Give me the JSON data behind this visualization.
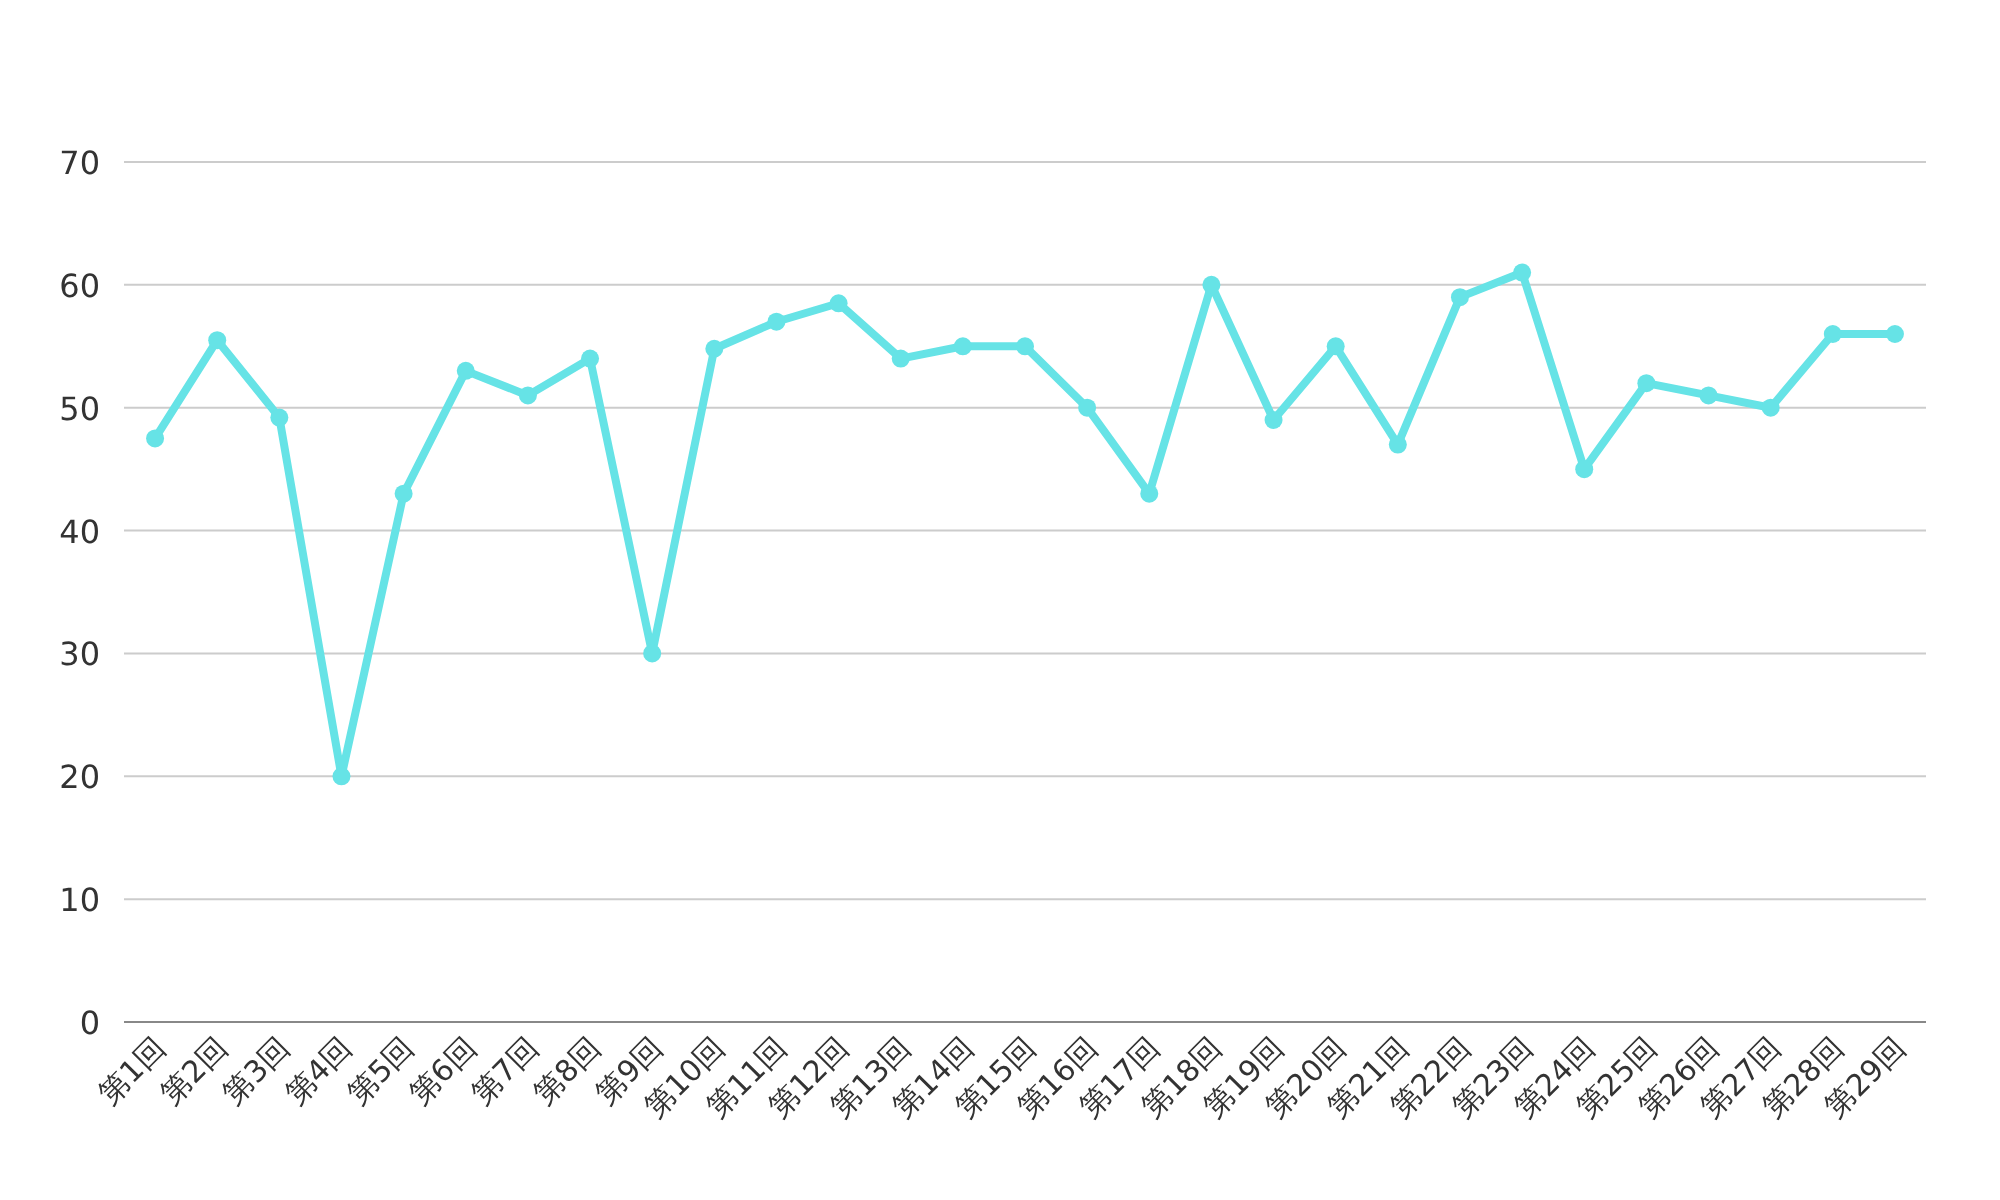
{
  "chart_data": {
    "type": "line",
    "categories": [
      "第1回",
      "第2回",
      "第3回",
      "第4回",
      "第5回",
      "第6回",
      "第7回",
      "第8回",
      "第9回",
      "第10回",
      "第11回",
      "第12回",
      "第13回",
      "第14回",
      "第15回",
      "第16回",
      "第17回",
      "第18回",
      "第19回",
      "第20回",
      "第21回",
      "第22回",
      "第23回",
      "第24回",
      "第25回",
      "第26回",
      "第27回",
      "第28回",
      "第29回"
    ],
    "series": [
      {
        "color": "#66e3e6",
        "values": [
          47.5,
          55.5,
          49.2,
          20,
          43,
          53,
          51,
          54,
          30,
          54.8,
          57,
          58.5,
          54,
          55,
          55,
          50,
          43,
          60,
          49,
          55,
          47,
          59,
          61,
          45,
          52,
          51,
          50,
          56,
          56
        ]
      }
    ],
    "ylim": [
      0,
      70
    ],
    "yticks": [
      0,
      10,
      20,
      30,
      40,
      50,
      60,
      70
    ],
    "grid": "y",
    "marker": "circle",
    "line_style": "solid"
  }
}
